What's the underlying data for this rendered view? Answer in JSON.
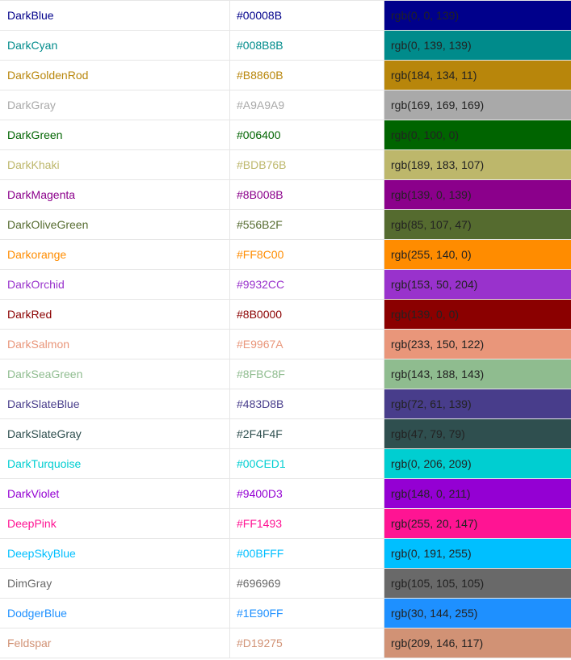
{
  "colors": [
    {
      "name": "DarkBlue",
      "hex": "#00008B",
      "rgb": "rgb(0, 0, 139)",
      "text_color": "#00008B",
      "swatch_color": "#00008B"
    },
    {
      "name": "DarkCyan",
      "hex": "#008B8B",
      "rgb": "rgb(0, 139, 139)",
      "text_color": "#008B8B",
      "swatch_color": "#008B8B"
    },
    {
      "name": "DarkGoldenRod",
      "hex": "#B8860B",
      "rgb": "rgb(184, 134, 11)",
      "text_color": "#B8860B",
      "swatch_color": "#B8860B"
    },
    {
      "name": "DarkGray",
      "hex": "#A9A9A9",
      "rgb": "rgb(169, 169, 169)",
      "text_color": "#A9A9A9",
      "swatch_color": "#A9A9A9"
    },
    {
      "name": "DarkGreen",
      "hex": "#006400",
      "rgb": "rgb(0, 100, 0)",
      "text_color": "#006400",
      "swatch_color": "#006400"
    },
    {
      "name": "DarkKhaki",
      "hex": "#BDB76B",
      "rgb": "rgb(189, 183, 107)",
      "text_color": "#BDB76B",
      "swatch_color": "#BDB76B"
    },
    {
      "name": "DarkMagenta",
      "hex": "#8B008B",
      "rgb": "rgb(139, 0, 139)",
      "text_color": "#8B008B",
      "swatch_color": "#8B008B"
    },
    {
      "name": "DarkOliveGreen",
      "hex": "#556B2F",
      "rgb": "rgb(85, 107, 47)",
      "text_color": "#556B2F",
      "swatch_color": "#556B2F"
    },
    {
      "name": "Darkorange",
      "hex": "#FF8C00",
      "rgb": "rgb(255, 140, 0)",
      "text_color": "#FF8C00",
      "swatch_color": "#FF8C00"
    },
    {
      "name": "DarkOrchid",
      "hex": "#9932CC",
      "rgb": "rgb(153, 50, 204)",
      "text_color": "#9932CC",
      "swatch_color": "#9932CC"
    },
    {
      "name": "DarkRed",
      "hex": "#8B0000",
      "rgb": "rgb(139, 0, 0)",
      "text_color": "#8B0000",
      "swatch_color": "#8B0000"
    },
    {
      "name": "DarkSalmon",
      "hex": "#E9967A",
      "rgb": "rgb(233, 150, 122)",
      "text_color": "#E9967A",
      "swatch_color": "#E9967A"
    },
    {
      "name": "DarkSeaGreen",
      "hex": "#8FBC8F",
      "rgb": "rgb(143, 188, 143)",
      "text_color": "#8FBC8F",
      "swatch_color": "#8FBC8F"
    },
    {
      "name": "DarkSlateBlue",
      "hex": "#483D8B",
      "rgb": "rgb(72, 61, 139)",
      "text_color": "#483D8B",
      "swatch_color": "#483D8B"
    },
    {
      "name": "DarkSlateGray",
      "hex": "#2F4F4F",
      "rgb": "rgb(47, 79, 79)",
      "text_color": "#2F4F4F",
      "swatch_color": "#2F4F4F"
    },
    {
      "name": "DarkTurquoise",
      "hex": "#00CED1",
      "rgb": "rgb(0, 206, 209)",
      "text_color": "#00CED1",
      "swatch_color": "#00CED1"
    },
    {
      "name": "DarkViolet",
      "hex": "#9400D3",
      "rgb": "rgb(148, 0, 211)",
      "text_color": "#9400D3",
      "swatch_color": "#9400D3"
    },
    {
      "name": "DeepPink",
      "hex": "#FF1493",
      "rgb": "rgb(255, 20, 147)",
      "text_color": "#FF1493",
      "swatch_color": "#FF1493"
    },
    {
      "name": "DeepSkyBlue",
      "hex": "#00BFFF",
      "rgb": "rgb(0, 191, 255)",
      "text_color": "#00BFFF",
      "swatch_color": "#00BFFF"
    },
    {
      "name": "DimGray",
      "hex": "#696969",
      "rgb": "rgb(105, 105, 105)",
      "text_color": "#696969",
      "swatch_color": "#696969"
    },
    {
      "name": "DodgerBlue",
      "hex": "#1E90FF",
      "rgb": "rgb(30, 144, 255)",
      "text_color": "#1E90FF",
      "swatch_color": "#1E90FF"
    },
    {
      "name": "Feldspar",
      "hex": "#D19275",
      "rgb": "rgb(209, 146, 117)",
      "text_color": "#D19275",
      "swatch_color": "#D19275"
    }
  ]
}
